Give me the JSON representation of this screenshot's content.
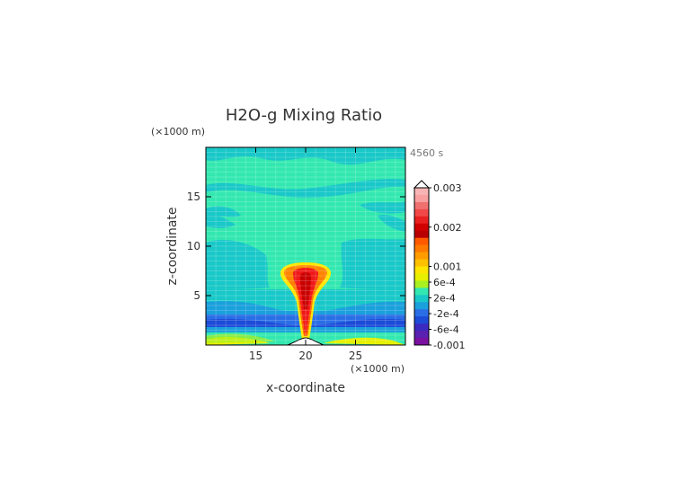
{
  "chart_data": {
    "type": "heatmap",
    "title": "H2O-g Mixing Ratio",
    "timestamp": "4560 s",
    "xlabel": "x-coordinate",
    "ylabel": "z-coordinate",
    "x_unit": "(×1000 m)",
    "y_unit": "(×1000 m)",
    "xlim": [
      10,
      30
    ],
    "ylim": [
      0,
      20
    ],
    "xticks": [
      "15",
      "20",
      "25"
    ],
    "yticks": [
      "5",
      "10",
      "15"
    ],
    "colorbar_labels": [
      "0.003",
      "0.002",
      "0.001",
      "6e-4",
      "2e-4",
      "-2e-4",
      "-6e-4",
      "-0.001"
    ],
    "colorbar_range": [
      -0.001,
      0.003
    ]
  }
}
